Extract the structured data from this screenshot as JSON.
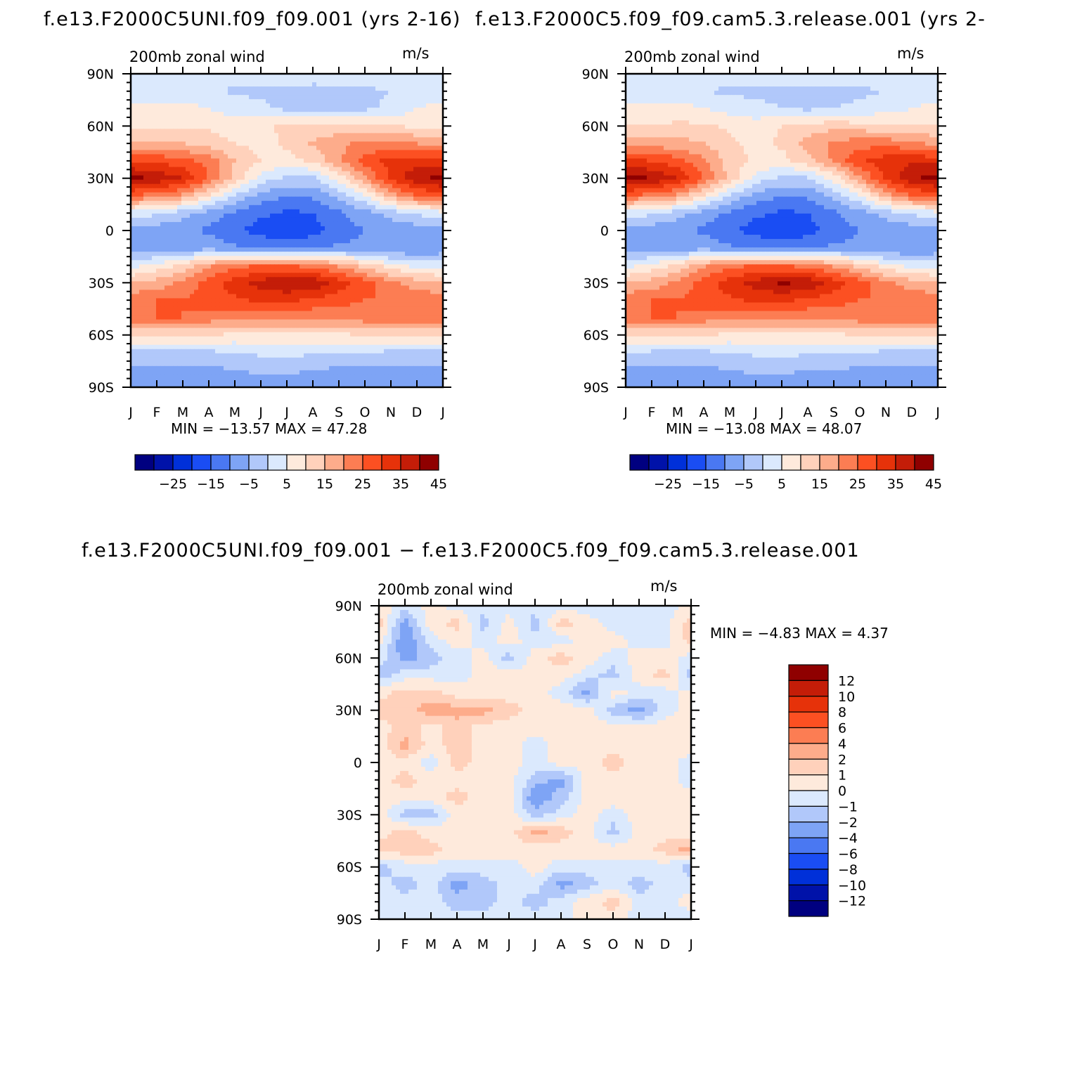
{
  "colors": {
    "fill_scale": [
      "#000080",
      "#0012a9",
      "#0030d9",
      "#1a4df3",
      "#4a78f2",
      "#7ea4f5",
      "#b1c8fa",
      "#dbe9fd",
      "#feeadc",
      "#ffd1bb",
      "#fdac8b",
      "#fc7d53",
      "#fc5022",
      "#e6320a",
      "#c41d08",
      "#8f0000"
    ]
  },
  "chart_data": [
    {
      "type": "heatmap",
      "title": "f.e13.F2000C5UNI.f09_f09.001 (yrs 2-16)",
      "left_label": "200mb zonal wind",
      "right_label": "m/s",
      "x_ticks": [
        "J",
        "F",
        "M",
        "A",
        "M",
        "J",
        "J",
        "A",
        "S",
        "O",
        "N",
        "D",
        "J"
      ],
      "y_ticks": [
        "90N",
        "60N",
        "30N",
        "0",
        "30S",
        "60S",
        "90S"
      ],
      "ylim": [
        -90,
        90
      ],
      "min_max": "MIN = −13.57 MAX =   47.28",
      "colorbar": {
        "orientation": "horizontal",
        "levels": [
          -30,
          -25,
          -20,
          -15,
          -10,
          -5,
          0,
          5,
          10,
          15,
          20,
          25,
          30,
          35,
          40,
          45
        ],
        "labels": [
          "−25",
          "−15",
          "−5",
          "5",
          "15",
          "25",
          "35",
          "45"
        ]
      },
      "rows_lat": [
        90,
        80,
        70,
        60,
        50,
        40,
        30,
        20,
        10,
        0,
        -10,
        -20,
        -30,
        -40,
        -50,
        -60,
        -70,
        -80,
        -90
      ],
      "values": [
        [
          8,
          8,
          8,
          8,
          8,
          8,
          8,
          8,
          8,
          8,
          8,
          8,
          8
        ],
        [
          6,
          6,
          6,
          6,
          4,
          4,
          4,
          3,
          4,
          4,
          5,
          6,
          6
        ],
        [
          12,
          12,
          12,
          10,
          8,
          6,
          4,
          4,
          4,
          4,
          6,
          10,
          12
        ],
        [
          14,
          14,
          14,
          14,
          12,
          14,
          16,
          16,
          16,
          15,
          15,
          14,
          14
        ],
        [
          20,
          20,
          20,
          18,
          15,
          13,
          16,
          21,
          24,
          26,
          27,
          25,
          23
        ],
        [
          34,
          34,
          32,
          28,
          20,
          15,
          13,
          16,
          24,
          32,
          37,
          38,
          37
        ],
        [
          47,
          44,
          40,
          30,
          18,
          8,
          4,
          4,
          12,
          24,
          36,
          44,
          47
        ],
        [
          30,
          28,
          24,
          14,
          4,
          -2,
          -5,
          -4,
          2,
          10,
          22,
          30,
          32
        ],
        [
          8,
          6,
          2,
          -2,
          -6,
          -9,
          -11,
          -10,
          -6,
          -2,
          2,
          6,
          8
        ],
        [
          -2,
          -3,
          -4,
          -6,
          -9,
          -12,
          -13,
          -12,
          -8,
          -5,
          -4,
          -3,
          -2
        ],
        [
          -4,
          -4,
          -3,
          -2,
          -4,
          -6,
          -7,
          -6,
          -4,
          -4,
          -5,
          -5,
          -4
        ],
        [
          8,
          12,
          16,
          24,
          28,
          30,
          30,
          28,
          24,
          18,
          12,
          8,
          8
        ],
        [
          20,
          22,
          26,
          32,
          38,
          42,
          45,
          44,
          38,
          32,
          26,
          22,
          20
        ],
        [
          28,
          30,
          30,
          32,
          34,
          36,
          36,
          34,
          32,
          30,
          30,
          29,
          28
        ],
        [
          30,
          30,
          30,
          28,
          26,
          26,
          26,
          26,
          26,
          28,
          30,
          30,
          30
        ],
        [
          16,
          16,
          16,
          15,
          14,
          14,
          14,
          14,
          14,
          15,
          16,
          16,
          16
        ],
        [
          4,
          4,
          4,
          4,
          5,
          6,
          6,
          6,
          6,
          5,
          4,
          4,
          4
        ],
        [
          -2,
          -2,
          -2,
          -1,
          0,
          1,
          1,
          0,
          -1,
          -2,
          -2,
          -2,
          -2
        ],
        [
          -3,
          -3,
          -3,
          -3,
          -3,
          -3,
          -3,
          -3,
          -3,
          -3,
          -3,
          -3,
          -3
        ]
      ]
    },
    {
      "type": "heatmap",
      "title": "f.e13.F2000C5.f09_f09.cam5.3.release.001 (yrs 2-",
      "left_label": "200mb zonal wind",
      "right_label": "m/s",
      "x_ticks": [
        "J",
        "F",
        "M",
        "A",
        "M",
        "J",
        "J",
        "A",
        "S",
        "O",
        "N",
        "D",
        "J"
      ],
      "y_ticks": [
        "90N",
        "60N",
        "30N",
        "0",
        "30S",
        "60S",
        "90S"
      ],
      "ylim": [
        -90,
        90
      ],
      "min_max": "MIN = −13.08 MAX =   48.07",
      "colorbar": {
        "orientation": "horizontal",
        "levels": [
          -30,
          -25,
          -20,
          -15,
          -10,
          -5,
          0,
          5,
          10,
          15,
          20,
          25,
          30,
          35,
          40,
          45
        ],
        "labels": [
          "−25",
          "−15",
          "−5",
          "5",
          "15",
          "25",
          "35",
          "45"
        ]
      },
      "rows_lat": [
        90,
        80,
        70,
        60,
        50,
        40,
        30,
        20,
        10,
        0,
        -10,
        -20,
        -30,
        -40,
        -50,
        -60,
        -70,
        -80,
        -90
      ],
      "values": [
        [
          8,
          8,
          8,
          8,
          8,
          8,
          8,
          8,
          8,
          8,
          8,
          8,
          8
        ],
        [
          7,
          6,
          6,
          5,
          4,
          4,
          4,
          4,
          4,
          4,
          5,
          6,
          7
        ],
        [
          12,
          12,
          12,
          10,
          8,
          6,
          5,
          4,
          5,
          6,
          8,
          10,
          12
        ],
        [
          15,
          15,
          16,
          16,
          14,
          13,
          15,
          17,
          18,
          17,
          16,
          15,
          15
        ],
        [
          22,
          22,
          22,
          20,
          16,
          13,
          16,
          22,
          26,
          28,
          28,
          26,
          24
        ],
        [
          36,
          35,
          32,
          26,
          18,
          14,
          13,
          18,
          26,
          34,
          38,
          39,
          38
        ],
        [
          48,
          45,
          40,
          30,
          18,
          8,
          4,
          4,
          12,
          24,
          36,
          44,
          47
        ],
        [
          30,
          28,
          24,
          14,
          4,
          -2,
          -5,
          -4,
          2,
          10,
          22,
          30,
          32
        ],
        [
          8,
          6,
          2,
          -2,
          -6,
          -9,
          -11,
          -10,
          -6,
          -2,
          2,
          6,
          8
        ],
        [
          -2,
          -3,
          -4,
          -6,
          -9,
          -12,
          -13,
          -12,
          -8,
          -5,
          -4,
          -3,
          -2
        ],
        [
          -4,
          -4,
          -3,
          -2,
          -4,
          -6,
          -7,
          -6,
          -4,
          -4,
          -5,
          -5,
          -4
        ],
        [
          8,
          12,
          16,
          24,
          28,
          30,
          30,
          28,
          24,
          18,
          12,
          8,
          8
        ],
        [
          20,
          22,
          26,
          32,
          38,
          42,
          46,
          44,
          38,
          32,
          26,
          22,
          20
        ],
        [
          28,
          30,
          30,
          32,
          34,
          36,
          36,
          34,
          32,
          30,
          30,
          29,
          28
        ],
        [
          30,
          30,
          30,
          28,
          26,
          26,
          26,
          26,
          26,
          28,
          30,
          30,
          30
        ],
        [
          16,
          16,
          16,
          15,
          14,
          14,
          14,
          14,
          14,
          15,
          16,
          16,
          16
        ],
        [
          6,
          4,
          4,
          4,
          5,
          6,
          6,
          6,
          6,
          5,
          4,
          4,
          4
        ],
        [
          -1,
          -1,
          -1,
          -1,
          0,
          1,
          1,
          0,
          0,
          -1,
          -1,
          -1,
          -1
        ],
        [
          -3,
          -3,
          -3,
          -3,
          -3,
          -3,
          -3,
          -3,
          -4,
          -3,
          -3,
          -3,
          -3
        ]
      ]
    },
    {
      "type": "heatmap",
      "title": "f.e13.F2000C5UNI.f09_f09.001 − f.e13.F2000C5.f09_f09.cam5.3.release.001",
      "left_label": "200mb zonal wind",
      "right_label": "m/s",
      "x_ticks": [
        "J",
        "F",
        "M",
        "A",
        "M",
        "J",
        "J",
        "A",
        "S",
        "O",
        "N",
        "D",
        "J"
      ],
      "y_ticks": [
        "90N",
        "60N",
        "30N",
        "0",
        "30S",
        "60S",
        "90S"
      ],
      "ylim": [
        -90,
        90
      ],
      "min_max": "MIN =   −4.83 MAX =    4.37",
      "colorbar": {
        "orientation": "vertical",
        "levels": [
          -14,
          -12,
          -10,
          -8,
          -6,
          -4,
          -2,
          -1,
          0,
          1,
          2,
          4,
          6,
          8,
          10,
          12
        ],
        "labels": [
          "12",
          "10",
          "8",
          "6",
          "4",
          "2",
          "1",
          "0",
          "−1",
          "−2",
          "−4",
          "−6",
          "−8",
          "−10",
          "−12"
        ]
      },
      "rows_lat": [
        90,
        80,
        70,
        60,
        50,
        40,
        30,
        20,
        10,
        0,
        -10,
        -20,
        -30,
        -40,
        -50,
        -60,
        -70,
        -80,
        -90
      ],
      "values": [
        [
          0.5,
          -0.5,
          0.5,
          -0.5,
          -0.5,
          -0.5,
          -0.5,
          -0.5,
          -0.5,
          -0.5,
          -0.5,
          -0.5,
          0.5
        ],
        [
          1.5,
          -2.5,
          0.5,
          1.5,
          -1.5,
          0.5,
          -1.5,
          1.5,
          0.5,
          -0.5,
          -0.5,
          -0.5,
          1.5
        ],
        [
          0.5,
          -3,
          -0.5,
          0.5,
          -0.5,
          0.5,
          -0.5,
          -0.5,
          0.5,
          0.5,
          -0.5,
          -0.5,
          1.5
        ],
        [
          -0.5,
          -2.5,
          -1.5,
          -0.5,
          0.5,
          -1.5,
          0.5,
          1.5,
          0.5,
          -0.5,
          0.5,
          0.5,
          -0.5
        ],
        [
          -1.5,
          -0.5,
          -0.5,
          -0.5,
          0.5,
          0.5,
          0.5,
          0.5,
          -0.5,
          -1.5,
          0.5,
          1.5,
          -1.5
        ],
        [
          0.5,
          1.5,
          1.5,
          0.5,
          0.5,
          0.5,
          0.5,
          -0.5,
          -2.5,
          0.5,
          -0.5,
          -0.5,
          0.5
        ],
        [
          1.5,
          1.5,
          2.5,
          2.5,
          2.5,
          1.5,
          0.5,
          0.5,
          0.5,
          -1.5,
          -2.5,
          -0.5,
          0.5
        ],
        [
          0.5,
          1.5,
          0.5,
          1.5,
          0.5,
          0.5,
          0.5,
          0.5,
          0.5,
          0.5,
          0.5,
          0.5,
          0.5
        ],
        [
          0.5,
          2.5,
          0.5,
          1.5,
          0.5,
          0.5,
          -0.5,
          0.5,
          0.5,
          0.5,
          0.5,
          0.5,
          0.5
        ],
        [
          0.5,
          0.5,
          -0.5,
          1.5,
          0.5,
          0.5,
          -0.5,
          0.5,
          0.5,
          1.5,
          0.5,
          0.5,
          -0.5
        ],
        [
          0.5,
          1.5,
          0.5,
          0.5,
          0.5,
          0.5,
          -1.5,
          -2.5,
          0.5,
          0.5,
          0.5,
          0.5,
          -0.5
        ],
        [
          0.5,
          0.5,
          0.5,
          1.5,
          0.5,
          0.5,
          -3,
          -1.5,
          0.5,
          0.5,
          0.5,
          0.5,
          0.5
        ],
        [
          0.5,
          -1.5,
          -1.5,
          0.5,
          0.5,
          0.5,
          -1.5,
          -0.5,
          0.5,
          -0.5,
          0.5,
          0.5,
          0.5
        ],
        [
          0.5,
          1.5,
          0.5,
          0.5,
          0.5,
          0.5,
          2.5,
          1.5,
          0.5,
          -1.5,
          0.5,
          0.5,
          0.5
        ],
        [
          1.5,
          1.5,
          1.5,
          0.5,
          0.5,
          0.5,
          0.5,
          0.5,
          0.5,
          0.5,
          0.5,
          1.5,
          2.5
        ],
        [
          -1.5,
          -0.5,
          -0.5,
          -0.5,
          -0.5,
          -0.5,
          0.5,
          -0.5,
          -0.5,
          -0.5,
          -0.5,
          -0.5,
          -1.5
        ],
        [
          -0.5,
          -1.5,
          -0.5,
          -2.5,
          -1.5,
          -0.5,
          -0.5,
          -2.5,
          -1.5,
          -0.5,
          -1.5,
          -0.5,
          -0.5
        ],
        [
          -0.5,
          -0.5,
          -0.5,
          -1.5,
          -1.5,
          -0.5,
          -1.5,
          -0.5,
          0.5,
          1.5,
          -0.5,
          -0.5,
          0.5
        ],
        [
          -0.5,
          -0.5,
          -0.5,
          -0.5,
          -0.5,
          -0.5,
          -0.5,
          -0.5,
          0.5,
          0.5,
          -0.5,
          -0.5,
          -0.5
        ]
      ]
    }
  ]
}
